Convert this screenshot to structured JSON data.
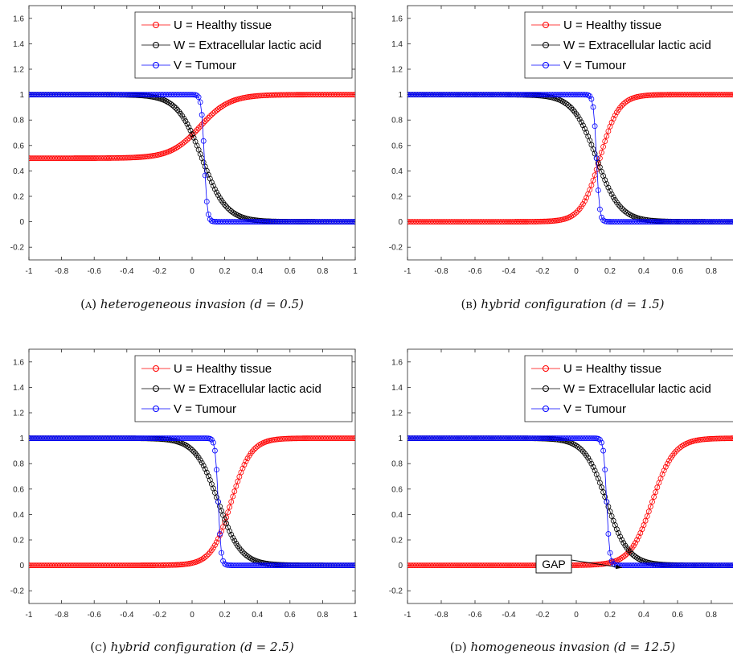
{
  "chart_data": [
    {
      "type": "line",
      "panel_letter": "A",
      "caption": "heterogeneous invasion",
      "param_text": "(d = 0.5)",
      "xlim": [
        -1,
        1
      ],
      "ylim": [
        -0.3,
        1.7
      ],
      "xticks": [
        "-1",
        "-0.8",
        "-0.6",
        "-0.4",
        "-0.2",
        "0",
        "0.2",
        "0.4",
        "0.6",
        "0.8",
        "1"
      ],
      "yticks": [
        "-0.2",
        "0",
        "0.2",
        "0.4",
        "0.6",
        "0.8",
        "1",
        "1.2",
        "1.4",
        "1.6"
      ],
      "grid": false,
      "legend": "top-right",
      "series": [
        {
          "name": "U = Healthy tissue",
          "color": "#ff0000",
          "profile": "rise",
          "left": 0.5,
          "right": 1.0,
          "center": 0.05,
          "width": 0.09
        },
        {
          "name": "W = Extracellular lactic acid",
          "color": "#000000",
          "profile": "fall",
          "left": 1.0,
          "right": 0.0,
          "center": 0.06,
          "width": 0.075
        },
        {
          "name": "V = Tumour",
          "color": "#0000ff",
          "profile": "fall",
          "left": 1.0,
          "right": 0.0,
          "center": 0.075,
          "width": 0.009
        }
      ]
    },
    {
      "type": "line",
      "panel_letter": "B",
      "caption": "hybrid configuration",
      "param_text": "(d = 1.5)",
      "xlim": [
        -1,
        1
      ],
      "ylim": [
        -0.3,
        1.7
      ],
      "xticks": [
        "-1",
        "-0.8",
        "-0.6",
        "-0.4",
        "-0.2",
        "0",
        "0.2",
        "0.4",
        "0.6",
        "0.8",
        "1"
      ],
      "yticks": [
        "-0.2",
        "0",
        "0.2",
        "0.4",
        "0.6",
        "0.8",
        "1",
        "1.2",
        "1.4",
        "1.6"
      ],
      "grid": false,
      "legend": "top-right",
      "series": [
        {
          "name": "U = Healthy tissue",
          "color": "#ff0000",
          "profile": "rise",
          "left": 0.0,
          "right": 1.0,
          "center": 0.14,
          "width": 0.055
        },
        {
          "name": "W = Extracellular lactic acid",
          "color": "#000000",
          "profile": "fall",
          "left": 1.0,
          "right": 0.0,
          "center": 0.12,
          "width": 0.07
        },
        {
          "name": "V = Tumour",
          "color": "#0000ff",
          "profile": "fall",
          "left": 1.0,
          "right": 0.0,
          "center": 0.12,
          "width": 0.009
        }
      ]
    },
    {
      "type": "line",
      "panel_letter": "C",
      "caption": "hybrid configuration",
      "param_text": "(d = 2.5)",
      "xlim": [
        -1,
        1
      ],
      "ylim": [
        -0.3,
        1.7
      ],
      "xticks": [
        "-1",
        "-0.8",
        "-0.6",
        "-0.4",
        "-0.2",
        "0",
        "0.2",
        "0.4",
        "0.6",
        "0.8",
        "1"
      ],
      "yticks": [
        "-0.2",
        "0",
        "0.2",
        "0.4",
        "0.6",
        "0.8",
        "1",
        "1.2",
        "1.4",
        "1.6"
      ],
      "grid": false,
      "legend": "top-right",
      "series": [
        {
          "name": "U = Healthy tissue",
          "color": "#ff0000",
          "profile": "rise",
          "left": 0.0,
          "right": 1.0,
          "center": 0.24,
          "width": 0.06
        },
        {
          "name": "W = Extracellular lactic acid",
          "color": "#000000",
          "profile": "fall",
          "left": 1.0,
          "right": 0.0,
          "center": 0.16,
          "width": 0.07
        },
        {
          "name": "V = Tumour",
          "color": "#0000ff",
          "profile": "fall",
          "left": 1.0,
          "right": 0.0,
          "center": 0.16,
          "width": 0.009
        }
      ]
    },
    {
      "type": "line",
      "panel_letter": "D",
      "caption": "homogeneous invasion",
      "param_text": "(d = 12.5)",
      "xlim": [
        -1,
        1
      ],
      "ylim": [
        -0.3,
        1.7
      ],
      "xticks": [
        "-1",
        "-0.8",
        "-0.6",
        "-0.4",
        "-0.2",
        "0",
        "0.2",
        "0.4",
        "0.6",
        "0.8",
        "1"
      ],
      "yticks": [
        "-0.2",
        "0",
        "0.2",
        "0.4",
        "0.6",
        "0.8",
        "1",
        "1.2",
        "1.4",
        "1.6"
      ],
      "grid": false,
      "legend": "top-right",
      "annotation": {
        "text": "GAP",
        "x": 0.28,
        "y": 0.0
      },
      "series": [
        {
          "name": "U = Healthy tissue",
          "color": "#ff0000",
          "profile": "rise",
          "left": 0.0,
          "right": 1.0,
          "center": 0.45,
          "width": 0.065
        },
        {
          "name": "W = Extracellular lactic acid",
          "color": "#000000",
          "profile": "fall",
          "left": 1.0,
          "right": 0.0,
          "center": 0.18,
          "width": 0.065
        },
        {
          "name": "V = Tumour",
          "color": "#0000ff",
          "profile": "fall",
          "left": 1.0,
          "right": 0.0,
          "center": 0.18,
          "width": 0.009
        }
      ]
    }
  ]
}
